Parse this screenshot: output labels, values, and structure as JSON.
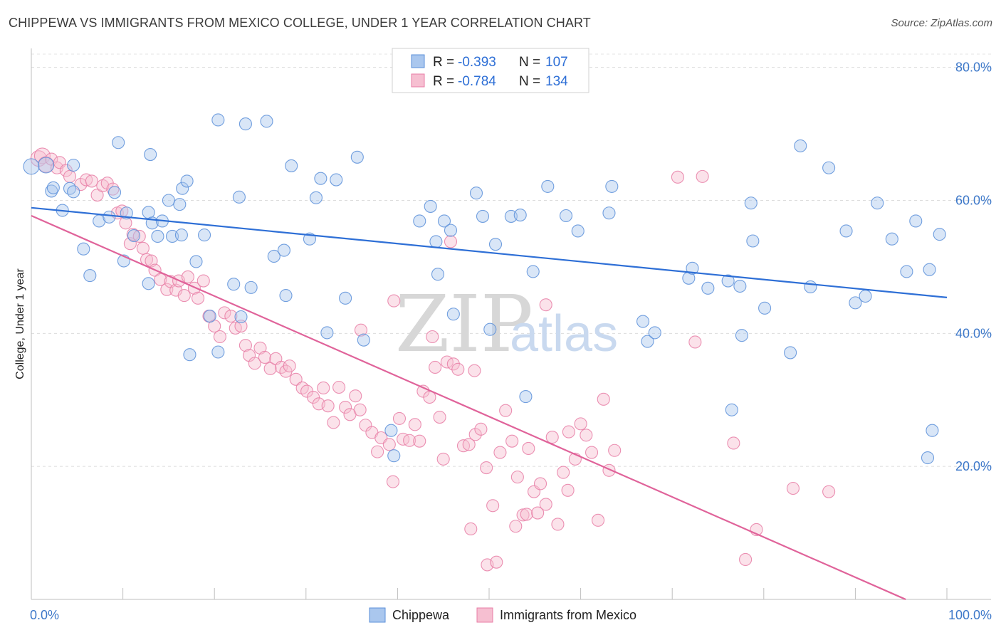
{
  "title": "CHIPPEWA VS IMMIGRANTS FROM MEXICO COLLEGE, UNDER 1 YEAR CORRELATION CHART",
  "source": "Source: ZipAtlas.com",
  "watermark": {
    "zip": "ZIP",
    "atlas": "atlas"
  },
  "colors": {
    "chippewa": "#5b8fd9",
    "mexico": "#e87ea6",
    "chippewa_fill": "#aac7ee",
    "mexico_fill": "#f6bfd1",
    "tick": "#3d78c9"
  },
  "legend": {
    "r_label": "R =",
    "n_label": "N =",
    "rows": [
      {
        "r": "-0.393",
        "n": "107"
      },
      {
        "r": "-0.784",
        "n": "134"
      }
    ]
  },
  "bottom_legend": [
    "Chippewa",
    "Immigrants from Mexico"
  ],
  "chart_data": {
    "type": "scatter",
    "title": "CHIPPEWA VS IMMIGRANTS FROM MEXICO COLLEGE, UNDER 1 YEAR CORRELATION CHART",
    "xlabel": "",
    "ylabel": "College, Under 1 year",
    "xlim": [
      0,
      100
    ],
    "ylim": [
      0,
      82
    ],
    "x_tick_labels": [
      "0.0%",
      "100.0%"
    ],
    "y_ticks": [
      20,
      40,
      60,
      80
    ],
    "y_tick_labels": [
      "20.0%",
      "40.0%",
      "60.0%",
      "80.0%"
    ],
    "grid": "horizontal dashed",
    "legend_position": "top-center",
    "series": [
      {
        "name": "Chippewa",
        "r": -0.393,
        "n": 107,
        "trend": {
          "x0": 0,
          "y0": 58.9,
          "x1": 100,
          "y1": 45.4
        },
        "points": [
          [
            0,
            65.1
          ],
          [
            1.6,
            65.3
          ],
          [
            4.6,
            65.3
          ],
          [
            2.2,
            61.4
          ],
          [
            2.4,
            61.9
          ],
          [
            4.2,
            61.8
          ],
          [
            4.6,
            61.3
          ],
          [
            3.4,
            58.5
          ],
          [
            7.4,
            56.9
          ],
          [
            9.1,
            61.2
          ],
          [
            8.5,
            57.5
          ],
          [
            10.4,
            58.1
          ],
          [
            13,
            66.9
          ],
          [
            11.2,
            54.7
          ],
          [
            13.8,
            54.6
          ],
          [
            12.8,
            58.2
          ],
          [
            15,
            60
          ],
          [
            16.2,
            59.4
          ],
          [
            16.5,
            61.8
          ],
          [
            13.2,
            56.6
          ],
          [
            14.3,
            56.9
          ],
          [
            15.4,
            54.6
          ],
          [
            16.4,
            54.8
          ],
          [
            18.9,
            54.8
          ],
          [
            17,
            62.9
          ],
          [
            9.5,
            68.7
          ],
          [
            5.7,
            52.7
          ],
          [
            6.4,
            48.7
          ],
          [
            10.1,
            50.9
          ],
          [
            12.8,
            47.5
          ],
          [
            18,
            50.8
          ],
          [
            20.4,
            72.1
          ],
          [
            23.4,
            71.5
          ],
          [
            25.7,
            71.9
          ],
          [
            22.7,
            60.5
          ],
          [
            28.4,
            65.2
          ],
          [
            31.6,
            63.3
          ],
          [
            31.1,
            60.4
          ],
          [
            33.3,
            63.1
          ],
          [
            35.6,
            66.5
          ],
          [
            30.4,
            54.2
          ],
          [
            27.6,
            52.5
          ],
          [
            26.5,
            51.6
          ],
          [
            22.1,
            47.4
          ],
          [
            24,
            46.9
          ],
          [
            27.8,
            45.7
          ],
          [
            34.3,
            45.3
          ],
          [
            19.5,
            42.6
          ],
          [
            22.9,
            42.5
          ],
          [
            32.3,
            40.1
          ],
          [
            36.3,
            39
          ],
          [
            17.3,
            36.8
          ],
          [
            20.4,
            37.2
          ],
          [
            43.6,
            59.1
          ],
          [
            42.4,
            56.9
          ],
          [
            45.1,
            56.9
          ],
          [
            45.8,
            55.5
          ],
          [
            44.2,
            53.8
          ],
          [
            44.4,
            48.9
          ],
          [
            48.6,
            61.1
          ],
          [
            49.3,
            57.6
          ],
          [
            50.7,
            53.4
          ],
          [
            52.4,
            57.6
          ],
          [
            53.4,
            57.8
          ],
          [
            56.4,
            62.1
          ],
          [
            58.4,
            57.7
          ],
          [
            59.7,
            55.4
          ],
          [
            50.1,
            40.6
          ],
          [
            46.1,
            42.9
          ],
          [
            54,
            30.5
          ],
          [
            54.8,
            49.3
          ],
          [
            63.4,
            62.1
          ],
          [
            63.1,
            58.1
          ],
          [
            66.8,
            41.8
          ],
          [
            67.3,
            38.8
          ],
          [
            68.1,
            40.1
          ],
          [
            71.8,
            48.3
          ],
          [
            72.2,
            49.8
          ],
          [
            73.9,
            46.8
          ],
          [
            76.1,
            47.9
          ],
          [
            77.4,
            47.1
          ],
          [
            77.6,
            39.7
          ],
          [
            78.6,
            59.6
          ],
          [
            78.8,
            53.9
          ],
          [
            80.1,
            43.8
          ],
          [
            82.9,
            37.1
          ],
          [
            84,
            68.2
          ],
          [
            85.1,
            47
          ],
          [
            87.1,
            64.9
          ],
          [
            89,
            55.4
          ],
          [
            90,
            44.6
          ],
          [
            91.1,
            45.6
          ],
          [
            92.4,
            59.6
          ],
          [
            94,
            54.2
          ],
          [
            95.6,
            49.3
          ],
          [
            96.6,
            56.9
          ],
          [
            98.1,
            49.6
          ],
          [
            99.2,
            54.9
          ],
          [
            97.9,
            21.3
          ],
          [
            98.4,
            25.4
          ],
          [
            76.5,
            28.5
          ],
          [
            39.3,
            25.4
          ],
          [
            39.6,
            21.6
          ]
        ]
      },
      {
        "name": "Immigrants from Mexico",
        "r": -0.784,
        "n": 134,
        "trend": {
          "x0": 0,
          "y0": 57.7,
          "x1": 95.5,
          "y1": 0
        },
        "points": [
          [
            0.8,
            66.3
          ],
          [
            1.2,
            66.7
          ],
          [
            1.6,
            65.4
          ],
          [
            2.2,
            66.2
          ],
          [
            2.8,
            64.9
          ],
          [
            3.1,
            65.7
          ],
          [
            3.8,
            64.5
          ],
          [
            4.2,
            63.6
          ],
          [
            5.4,
            62.4
          ],
          [
            6,
            63.1
          ],
          [
            6.6,
            62.9
          ],
          [
            7.2,
            60.8
          ],
          [
            7.8,
            62.2
          ],
          [
            8.3,
            62.6
          ],
          [
            8.9,
            61.7
          ],
          [
            9.4,
            58.1
          ],
          [
            9.9,
            58.4
          ],
          [
            10.3,
            56.6
          ],
          [
            10.8,
            53.5
          ],
          [
            11.1,
            54.9
          ],
          [
            11.8,
            54.6
          ],
          [
            12.2,
            52.8
          ],
          [
            12.6,
            51.1
          ],
          [
            13.1,
            50.9
          ],
          [
            13.5,
            49.5
          ],
          [
            14.1,
            48.1
          ],
          [
            14.8,
            46.6
          ],
          [
            15.2,
            47.8
          ],
          [
            15.8,
            46.5
          ],
          [
            16.1,
            47.9
          ],
          [
            16.7,
            45.7
          ],
          [
            17.1,
            48.5
          ],
          [
            17.8,
            46.8
          ],
          [
            18.2,
            45.3
          ],
          [
            18.8,
            47.9
          ],
          [
            19.4,
            42.6
          ],
          [
            20,
            41.1
          ],
          [
            20.6,
            39.5
          ],
          [
            21.1,
            43.1
          ],
          [
            21.8,
            42.6
          ],
          [
            22.3,
            40.8
          ],
          [
            22.9,
            41.1
          ],
          [
            23.4,
            38.2
          ],
          [
            23.8,
            36.7
          ],
          [
            24.4,
            35.5
          ],
          [
            25,
            37.8
          ],
          [
            25.5,
            36.4
          ],
          [
            26.1,
            34.7
          ],
          [
            26.7,
            36.2
          ],
          [
            27.3,
            34.9
          ],
          [
            27.8,
            34.3
          ],
          [
            28.2,
            35.1
          ],
          [
            28.9,
            33.1
          ],
          [
            29.6,
            31.8
          ],
          [
            30.1,
            31.3
          ],
          [
            30.8,
            30.4
          ],
          [
            31.4,
            29.4
          ],
          [
            31.9,
            31.8
          ],
          [
            32.4,
            29.1
          ],
          [
            33,
            26.6
          ],
          [
            33.6,
            31.9
          ],
          [
            34.3,
            28.9
          ],
          [
            34.8,
            27.8
          ],
          [
            35.4,
            30.6
          ],
          [
            35.9,
            28.5
          ],
          [
            36.5,
            26.2
          ],
          [
            37.2,
            25.1
          ],
          [
            37.8,
            22.2
          ],
          [
            38.2,
            24.3
          ],
          [
            39.1,
            23.3
          ],
          [
            39.5,
            17.7
          ],
          [
            40.2,
            27.2
          ],
          [
            40.6,
            24.1
          ],
          [
            41.3,
            23.9
          ],
          [
            41.9,
            26.3
          ],
          [
            42.4,
            23.8
          ],
          [
            42.8,
            31.3
          ],
          [
            43.5,
            30.4
          ],
          [
            44.1,
            34.9
          ],
          [
            44.6,
            27.4
          ],
          [
            45,
            21.1
          ],
          [
            45.4,
            35.7
          ],
          [
            46.1,
            35.4
          ],
          [
            46.6,
            34.6
          ],
          [
            47.2,
            23.1
          ],
          [
            47.8,
            23.3
          ],
          [
            48.5,
            24.8
          ],
          [
            49.1,
            25.6
          ],
          [
            49.7,
            19.8
          ],
          [
            50.4,
            14.1
          ],
          [
            51.2,
            22.1
          ],
          [
            51.8,
            28.4
          ],
          [
            52.5,
            23.8
          ],
          [
            53.1,
            18.4
          ],
          [
            53.7,
            12.7
          ],
          [
            54.3,
            22.7
          ],
          [
            54.9,
            16.2
          ],
          [
            55.6,
            17.4
          ],
          [
            56.2,
            14.3
          ],
          [
            56.9,
            24.4
          ],
          [
            57.5,
            11.3
          ],
          [
            58.1,
            19.1
          ],
          [
            58.7,
            25.2
          ],
          [
            59.4,
            21.1
          ],
          [
            60,
            26.4
          ],
          [
            60.6,
            24.7
          ],
          [
            61.2,
            22.1
          ],
          [
            61.9,
            11.9
          ],
          [
            62.5,
            30.1
          ],
          [
            63.1,
            19.4
          ],
          [
            63.7,
            22.4
          ],
          [
            36,
            40.5
          ],
          [
            39.6,
            44.9
          ],
          [
            43.8,
            39.5
          ],
          [
            45.8,
            53.8
          ],
          [
            48.4,
            34.4
          ],
          [
            56.2,
            44.3
          ],
          [
            70.6,
            63.5
          ],
          [
            73.3,
            63.6
          ],
          [
            72.5,
            38.7
          ],
          [
            76.7,
            23.5
          ],
          [
            79.2,
            10.5
          ],
          [
            83.2,
            16.7
          ],
          [
            87.1,
            16.2
          ],
          [
            78,
            6
          ],
          [
            48,
            10.6
          ],
          [
            49.8,
            5.2
          ],
          [
            50.8,
            5.6
          ],
          [
            52.9,
            11
          ],
          [
            54.1,
            12.8
          ],
          [
            55.3,
            13
          ],
          [
            58.6,
            16.4
          ]
        ]
      }
    ]
  }
}
